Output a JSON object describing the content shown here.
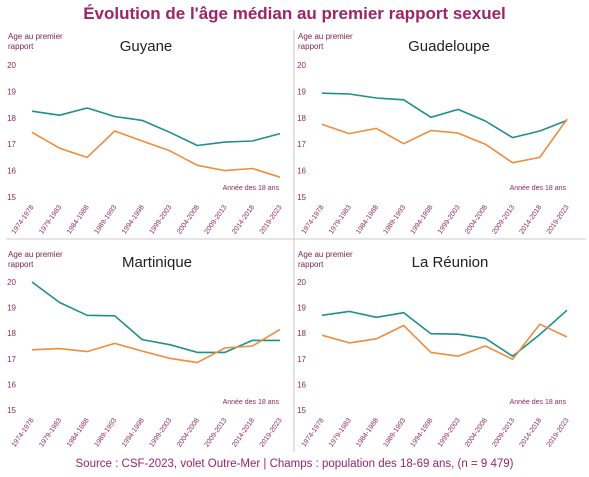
{
  "title": "Évolution de l'âge médian au premier rapport sexuel",
  "source": "Source : CSF-2023, volet Outre-Mer | Champs : population des 18-69 ans, (n = 9 479)",
  "colors": {
    "series_a": "#1f8f8a",
    "series_b": "#ef8d3f",
    "title": "#9c2467",
    "axis_text": "#8a2a5c"
  },
  "chart_data": [
    {
      "type": "line",
      "title": "Guyane",
      "ylabel_line1": "Age au premier",
      "ylabel_line2": "rapport",
      "note": "Année des 18 ans",
      "ylim": [
        15,
        20
      ],
      "yticks": [
        "15",
        "16",
        "17",
        "18",
        "19",
        "20"
      ],
      "categories": [
        "1974-1978",
        "1979-1983",
        "1984-1988",
        "1989-1993",
        "1994-1998",
        "1999-2003",
        "2004-2008",
        "2009-2013",
        "2014-2018",
        "2019-2023"
      ],
      "series": [
        {
          "values": [
            18.25,
            18.1,
            18.37,
            18.05,
            17.9,
            17.45,
            16.95,
            17.08,
            17.12,
            17.4
          ]
        },
        {
          "values": [
            17.45,
            16.85,
            16.5,
            17.5,
            17.12,
            16.75,
            16.2,
            16.0,
            16.08,
            15.75
          ]
        }
      ]
    },
    {
      "type": "line",
      "title": "Guadeloupe",
      "ylabel_line1": "Age au premier",
      "ylabel_line2": "rapport",
      "note": "Année des 18 ans",
      "ylim": [
        15,
        20
      ],
      "yticks": [
        "15",
        "16",
        "17",
        "18",
        "19",
        "20"
      ],
      "categories": [
        "1974-1978",
        "1979-1983",
        "1984-1988",
        "1989-1993",
        "1994-1998",
        "1999-2003",
        "2004-2008",
        "2009-2013",
        "2014-2018",
        "2019-2023"
      ],
      "series": [
        {
          "values": [
            18.93,
            18.9,
            18.75,
            18.68,
            18.02,
            18.32,
            17.88,
            17.25,
            17.5,
            17.9
          ]
        },
        {
          "values": [
            17.75,
            17.4,
            17.6,
            17.02,
            17.52,
            17.42,
            17.0,
            16.3,
            16.5,
            17.95
          ]
        }
      ]
    },
    {
      "type": "line",
      "title": "Martinique",
      "ylabel_line1": "Age au premier",
      "ylabel_line2": "rapport",
      "note": "Année des 18 ans",
      "ylim": [
        15,
        20
      ],
      "yticks": [
        "15",
        "16",
        "17",
        "18",
        "19",
        "20"
      ],
      "categories": [
        "1974-1978",
        "1979-1983",
        "1984-1988",
        "1989-1993",
        "1994-1998",
        "1999-2003",
        "2004-2008",
        "2009-2013",
        "2014-2018",
        "2019-2023"
      ],
      "series": [
        {
          "values": [
            20.0,
            19.2,
            18.7,
            18.68,
            17.75,
            17.55,
            17.25,
            17.25,
            17.72,
            17.72
          ]
        },
        {
          "values": [
            17.35,
            17.4,
            17.28,
            17.6,
            17.3,
            17.02,
            16.85,
            17.42,
            17.5,
            18.15
          ]
        }
      ]
    },
    {
      "type": "line",
      "title": "La Réunion",
      "ylabel_line1": "Age au premier",
      "ylabel_line2": "rapport",
      "note": "Année des 18 ans",
      "ylim": [
        15,
        20
      ],
      "yticks": [
        "15",
        "16",
        "17",
        "18",
        "19",
        "20"
      ],
      "categories": [
        "1974-1978",
        "1979-1983",
        "1984-1988",
        "1989-1993",
        "1994-1998",
        "1999-2003",
        "2004-2008",
        "2009-2013",
        "2014-2018",
        "2019-2023"
      ],
      "series": [
        {
          "values": [
            18.7,
            18.85,
            18.62,
            18.8,
            17.98,
            17.96,
            17.8,
            17.1,
            17.95,
            18.9
          ]
        },
        {
          "values": [
            17.92,
            17.62,
            17.78,
            18.3,
            17.25,
            17.1,
            17.5,
            16.98,
            18.35,
            17.85
          ]
        }
      ]
    }
  ]
}
